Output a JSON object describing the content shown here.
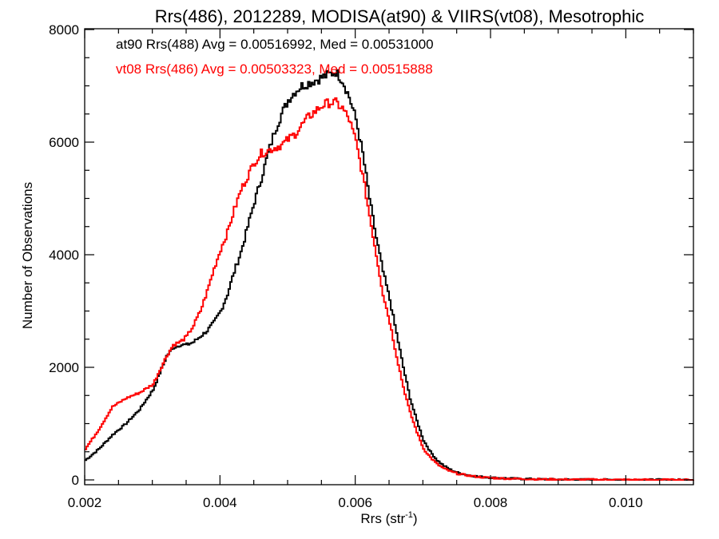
{
  "chart_data": {
    "type": "line",
    "title": "Rrs(486), 2012289, MODISA(at90) & VIIRS(vt08), Mesotrophic",
    "xlabel": "Rrs (str",
    "xlabel_sup": "-1",
    "xlabel_close": ")",
    "ylabel": "Number of Observations",
    "xlim": [
      0.002,
      0.011
    ],
    "ylim": [
      0,
      8000
    ],
    "xticks": [
      {
        "value": 0.002,
        "label": "0.002"
      },
      {
        "value": 0.004,
        "label": "0.004"
      },
      {
        "value": 0.006,
        "label": "0.006"
      },
      {
        "value": 0.008,
        "label": "0.008"
      },
      {
        "value": 0.01,
        "label": "0.010"
      }
    ],
    "yticks": [
      {
        "value": 0,
        "label": "0"
      },
      {
        "value": 2000,
        "label": "2000"
      },
      {
        "value": 4000,
        "label": "4000"
      },
      {
        "value": 6000,
        "label": "6000"
      },
      {
        "value": 8000,
        "label": "8000"
      }
    ],
    "grid": false,
    "annotations": [
      "at90 Rrs(488) Avg = 0.00516992, Med = 0.00531000",
      "vt08 Rrs(486) Avg = 0.00503323, Med = 0.00515888"
    ],
    "series": [
      {
        "color": "#000000",
        "x": [
          0.002,
          0.0022,
          0.0024,
          0.0026,
          0.0028,
          0.003,
          0.0031,
          0.0032,
          0.0033,
          0.0034,
          0.0035,
          0.0036,
          0.0037,
          0.0038,
          0.0039,
          0.004,
          0.0041,
          0.0042,
          0.0043,
          0.0044,
          0.0045,
          0.0046,
          0.0047,
          0.0048,
          0.0049,
          0.005,
          0.0051,
          0.0052,
          0.0053,
          0.0054,
          0.0055,
          0.0056,
          0.0057,
          0.0058,
          0.0059,
          0.006,
          0.0061,
          0.0062,
          0.0063,
          0.0064,
          0.0065,
          0.0066,
          0.0067,
          0.0068,
          0.0069,
          0.007,
          0.0071,
          0.0072,
          0.0073,
          0.0074,
          0.0075,
          0.0076,
          0.0077,
          0.0078,
          0.0079,
          0.008,
          0.0082,
          0.0084,
          0.0086,
          0.0088,
          0.009,
          0.0095,
          0.01,
          0.0105,
          0.011
        ],
        "y": [
          350,
          550,
          800,
          1000,
          1250,
          1600,
          1900,
          2200,
          2350,
          2400,
          2400,
          2450,
          2550,
          2650,
          2800,
          3000,
          3300,
          3700,
          4050,
          4500,
          4950,
          5350,
          5800,
          6200,
          6500,
          6750,
          6900,
          7000,
          7050,
          7100,
          7150,
          7200,
          7250,
          7100,
          6800,
          6400,
          5800,
          5000,
          4300,
          3700,
          3200,
          2600,
          2000,
          1450,
          1050,
          700,
          500,
          350,
          250,
          180,
          130,
          100,
          80,
          60,
          50,
          40,
          30,
          20,
          15,
          10,
          8,
          5,
          3,
          2,
          1
        ]
      },
      {
        "color": "#ff0000",
        "x": [
          0.002,
          0.0022,
          0.0024,
          0.0026,
          0.0028,
          0.003,
          0.0031,
          0.0032,
          0.0033,
          0.0034,
          0.0035,
          0.0036,
          0.0037,
          0.0038,
          0.0039,
          0.004,
          0.0041,
          0.0042,
          0.0043,
          0.0044,
          0.0045,
          0.0046,
          0.0047,
          0.0048,
          0.0049,
          0.005,
          0.0051,
          0.0052,
          0.0053,
          0.0054,
          0.0055,
          0.0056,
          0.0057,
          0.0058,
          0.0059,
          0.006,
          0.0061,
          0.0062,
          0.0063,
          0.0064,
          0.0065,
          0.0066,
          0.0067,
          0.0068,
          0.0069,
          0.007,
          0.0071,
          0.0072,
          0.0073,
          0.0074,
          0.0075,
          0.0076,
          0.0077,
          0.0078,
          0.0079,
          0.008,
          0.0082,
          0.0084,
          0.0086,
          0.0088,
          0.009,
          0.0095,
          0.01,
          0.0105,
          0.011
        ],
        "y": [
          550,
          900,
          1300,
          1450,
          1550,
          1700,
          1950,
          2200,
          2400,
          2450,
          2550,
          2750,
          3000,
          3350,
          3750,
          4100,
          4400,
          4800,
          5150,
          5400,
          5650,
          5800,
          5850,
          5900,
          5950,
          6050,
          6150,
          6300,
          6450,
          6550,
          6650,
          6700,
          6700,
          6600,
          6400,
          6000,
          5400,
          4700,
          4000,
          3300,
          2800,
          2200,
          1650,
          1200,
          850,
          550,
          400,
          280,
          200,
          150,
          110,
          90,
          70,
          55,
          45,
          35,
          25,
          20,
          15,
          10,
          8,
          5,
          3,
          2,
          1
        ]
      }
    ]
  }
}
